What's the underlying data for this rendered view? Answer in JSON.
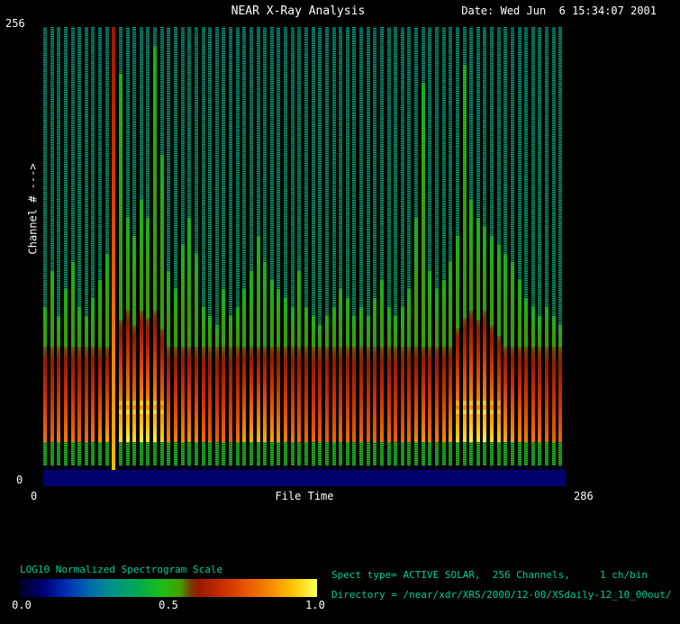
{
  "header": {
    "title": "NEAR X-Ray Analysis",
    "date": "Date: Wed Jun  6 15:34:07 2001"
  },
  "axes": {
    "y_max": "256",
    "y_min": "0",
    "y_label": "Channel # --->",
    "x_min": "0",
    "x_label": "File Time",
    "x_max": "286"
  },
  "footer": {
    "scale_label": "LOG10 Normalized Spectrogram Scale",
    "scale_ticks": [
      "0.0",
      "0.5",
      "1.0"
    ],
    "info_line1": "Spect type= ACTIVE SOLAR,  256 Channels,     1 ch/bin",
    "info_line2": "Directory = /near/xdr/XRS/2000/12-00/XSdaily-12_10_00out/"
  },
  "colors": {
    "background": "#000000",
    "title_text": "#ffffff",
    "info_text": "#00cc99",
    "navy_band": "#00006e"
  },
  "chart_data": {
    "type": "heatmap",
    "title": "NEAR X-Ray Analysis",
    "xlabel": "File Time",
    "ylabel": "Channel #",
    "x_range": [
      0,
      286
    ],
    "y_range": [
      0,
      256
    ],
    "scale_label": "LOG10 Normalized Spectrogram Scale",
    "scale_range": [
      0.0,
      1.0
    ],
    "legend_position": "bottom-left colorbar",
    "grid": false,
    "colormap_stops": [
      {
        "p": 0.0,
        "c": [
          0,
          0,
          40
        ]
      },
      {
        "p": 0.08,
        "c": [
          0,
          0,
          120
        ]
      },
      {
        "p": 0.16,
        "c": [
          0,
          50,
          180
        ]
      },
      {
        "p": 0.24,
        "c": [
          0,
          110,
          170
        ]
      },
      {
        "p": 0.32,
        "c": [
          0,
          150,
          130
        ]
      },
      {
        "p": 0.4,
        "c": [
          0,
          170,
          80
        ]
      },
      {
        "p": 0.48,
        "c": [
          30,
          190,
          20
        ]
      },
      {
        "p": 0.54,
        "c": [
          70,
          160,
          0
        ]
      },
      {
        "p": 0.575,
        "c": [
          120,
          60,
          0
        ]
      },
      {
        "p": 0.6,
        "c": [
          150,
          25,
          0
        ]
      },
      {
        "p": 0.68,
        "c": [
          200,
          45,
          0
        ]
      },
      {
        "p": 0.76,
        "c": [
          230,
          85,
          0
        ]
      },
      {
        "p": 0.84,
        "c": [
          245,
          135,
          0
        ]
      },
      {
        "p": 0.92,
        "c": [
          252,
          195,
          0
        ]
      },
      {
        "p": 1.0,
        "c": [
          255,
          255,
          90
        ]
      }
    ],
    "bands": {
      "navy_top_channel": 9,
      "gap_top_channel": 12,
      "green_band_top_channel": 25,
      "red_top_base_channel": 78
    },
    "columns": {
      "count": 76,
      "activity": [
        0.5,
        0.45,
        0.52,
        0.55,
        0.5,
        0.46,
        0.5,
        0.55,
        0.62,
        0.72,
        1.0,
        0.95,
        1.0,
        0.92,
        1.0,
        0.96,
        1.0,
        0.9,
        0.6,
        0.55,
        0.62,
        0.66,
        0.6,
        0.45,
        0.42,
        0.4,
        0.46,
        0.42,
        0.5,
        0.7,
        0.76,
        0.8,
        0.76,
        0.72,
        0.66,
        0.56,
        0.52,
        0.5,
        0.46,
        0.44,
        0.42,
        0.42,
        0.46,
        0.5,
        0.46,
        0.42,
        0.45,
        0.42,
        0.46,
        0.5,
        0.46,
        0.42,
        0.45,
        0.5,
        0.6,
        0.66,
        0.52,
        0.56,
        0.6,
        0.72,
        0.9,
        0.96,
        1.0,
        0.95,
        1.0,
        0.92,
        0.86,
        0.76,
        0.7,
        0.62,
        0.56,
        0.52,
        0.5,
        0.46,
        0.44,
        0.42
      ],
      "green_top_channel": [
        100,
        120,
        95,
        110,
        125,
        100,
        95,
        105,
        115,
        130,
        256,
        230,
        150,
        140,
        160,
        150,
        245,
        185,
        120,
        110,
        135,
        150,
        130,
        100,
        95,
        90,
        110,
        95,
        100,
        110,
        120,
        140,
        125,
        115,
        110,
        105,
        100,
        120,
        100,
        95,
        90,
        95,
        100,
        110,
        105,
        95,
        100,
        95,
        105,
        115,
        100,
        95,
        100,
        110,
        150,
        225,
        120,
        110,
        115,
        125,
        140,
        235,
        160,
        150,
        145,
        140,
        135,
        130,
        125,
        115,
        105,
        100,
        95,
        100,
        95,
        90
      ],
      "red_full_spike": [
        10
      ]
    }
  }
}
